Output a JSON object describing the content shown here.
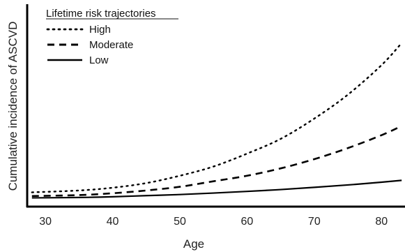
{
  "chart_data": {
    "type": "line",
    "title": "",
    "xlabel": "Age",
    "ylabel": "Cumulative incidence of ASCVD",
    "xlim": [
      27.5,
      83.5
    ],
    "x_ticks": [
      "30",
      "40",
      "50",
      "60",
      "70",
      "80"
    ],
    "x_tick_values": [
      30,
      40,
      50,
      60,
      70,
      80
    ],
    "ylim": [
      0,
      1
    ],
    "y_ticks_shown": false,
    "grid": false,
    "legend": {
      "title": "Lifetime risk trajectories",
      "placement": "top-left"
    },
    "x": [
      28,
      35,
      40,
      45,
      50,
      55,
      60,
      65,
      70,
      75,
      80,
      83
    ],
    "series": [
      {
        "name": "High",
        "style": "dotted",
        "values": [
          0.07,
          0.08,
          0.095,
          0.12,
          0.16,
          0.21,
          0.28,
          0.36,
          0.47,
          0.6,
          0.76,
          0.88
        ]
      },
      {
        "name": "Moderate",
        "style": "dashed",
        "values": [
          0.05,
          0.055,
          0.065,
          0.08,
          0.1,
          0.13,
          0.16,
          0.2,
          0.25,
          0.31,
          0.38,
          0.43
        ]
      },
      {
        "name": "Low",
        "style": "solid",
        "values": [
          0.04,
          0.042,
          0.046,
          0.052,
          0.058,
          0.066,
          0.075,
          0.085,
          0.097,
          0.11,
          0.125,
          0.135
        ]
      }
    ],
    "colors": {
      "line": "#000000",
      "axis": "#000000",
      "text": "#222222"
    }
  }
}
